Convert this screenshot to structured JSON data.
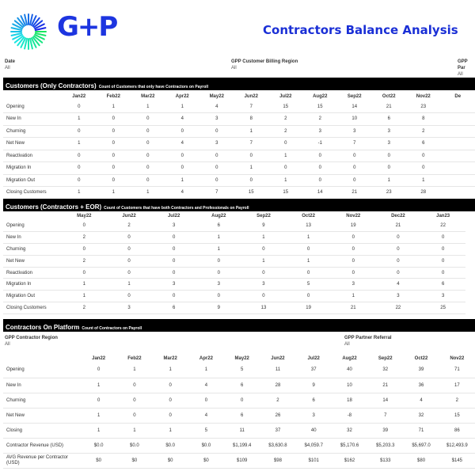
{
  "header": {
    "logo_text": "G+P",
    "title": "Contractors Balance Analysis"
  },
  "colors": {
    "brand": "#1d35e0",
    "band": "#000000",
    "title": "#1a2fd6"
  },
  "filters": [
    {
      "label": "Date",
      "value": "All"
    },
    {
      "label": "GPP Customer Billing Region",
      "value": "All"
    },
    {
      "label": "GPP Par",
      "value": "All"
    }
  ],
  "section1": {
    "title": "Customers (Only Contractors)",
    "subtitle": "Count of Customers that only have Contractors on Payroll",
    "columns": [
      "Jan22",
      "Feb22",
      "Mar22",
      "Apr22",
      "May22",
      "Jun22",
      "Jul22",
      "Aug22",
      "Sep22",
      "Oct22",
      "Nov22",
      "De"
    ],
    "rows": [
      {
        "label": "Opening",
        "values": [
          "0",
          "1",
          "1",
          "1",
          "4",
          "7",
          "15",
          "15",
          "14",
          "21",
          "23",
          ""
        ]
      },
      {
        "label": "New In",
        "values": [
          "1",
          "0",
          "0",
          "4",
          "3",
          "8",
          "2",
          "2",
          "10",
          "6",
          "8",
          ""
        ]
      },
      {
        "label": "Churning",
        "values": [
          "0",
          "0",
          "0",
          "0",
          "0",
          "1",
          "2",
          "3",
          "3",
          "3",
          "2",
          ""
        ]
      },
      {
        "label": "Net New",
        "values": [
          "1",
          "0",
          "0",
          "4",
          "3",
          "7",
          "0",
          "-1",
          "7",
          "3",
          "6",
          ""
        ]
      },
      {
        "label": "Reactivation",
        "values": [
          "0",
          "0",
          "0",
          "0",
          "0",
          "0",
          "1",
          "0",
          "0",
          "0",
          "0",
          ""
        ]
      },
      {
        "label": "Migration In",
        "values": [
          "0",
          "0",
          "0",
          "0",
          "0",
          "1",
          "0",
          "0",
          "0",
          "0",
          "0",
          ""
        ]
      },
      {
        "label": "Migration Out",
        "values": [
          "0",
          "0",
          "0",
          "1",
          "0",
          "0",
          "1",
          "0",
          "0",
          "1",
          "1",
          ""
        ]
      },
      {
        "label": "Closing Customers",
        "values": [
          "1",
          "1",
          "1",
          "4",
          "7",
          "15",
          "15",
          "14",
          "21",
          "23",
          "28",
          ""
        ]
      }
    ]
  },
  "section2": {
    "title": "Customers (Contractors + EOR)",
    "subtitle": "Count of Customers that have both Contractors and Professionals on Payroll",
    "columns": [
      "May22",
      "Jun22",
      "Jul22",
      "Aug22",
      "Sep22",
      "Oct22",
      "Nov22",
      "Dec22",
      "Jan23"
    ],
    "rows": [
      {
        "label": "Opening",
        "values": [
          "0",
          "2",
          "3",
          "6",
          "9",
          "13",
          "19",
          "21",
          "22"
        ]
      },
      {
        "label": "New In",
        "values": [
          "2",
          "0",
          "0",
          "1",
          "1",
          "1",
          "0",
          "0",
          "0"
        ]
      },
      {
        "label": "Churning",
        "values": [
          "0",
          "0",
          "0",
          "1",
          "0",
          "0",
          "0",
          "0",
          "0"
        ]
      },
      {
        "label": "Net New",
        "values": [
          "2",
          "0",
          "0",
          "0",
          "1",
          "1",
          "0",
          "0",
          "0"
        ]
      },
      {
        "label": "Reactivation",
        "values": [
          "0",
          "0",
          "0",
          "0",
          "0",
          "0",
          "0",
          "0",
          "0"
        ]
      },
      {
        "label": "Migration In",
        "values": [
          "1",
          "1",
          "3",
          "3",
          "3",
          "5",
          "3",
          "4",
          "6"
        ]
      },
      {
        "label": "Migration Out",
        "values": [
          "1",
          "0",
          "0",
          "0",
          "0",
          "0",
          "1",
          "3",
          "3"
        ]
      },
      {
        "label": "Closing Customers",
        "values": [
          "2",
          "3",
          "6",
          "9",
          "13",
          "19",
          "21",
          "22",
          "25"
        ]
      }
    ]
  },
  "section3": {
    "title": "Contractors On Platform",
    "subtitle": "Count of Contractors on Payroll",
    "filters": [
      {
        "label": "GPP Contractor Region",
        "value": "All"
      },
      {
        "label": "GPP Partner Referral",
        "value": "All"
      }
    ],
    "columns": [
      "Jan22",
      "Feb22",
      "Mar22",
      "Apr22",
      "May22",
      "Jun22",
      "Jul22",
      "Aug22",
      "Sep22",
      "Oct22",
      "Nov22"
    ],
    "rows": [
      {
        "label": "Opening",
        "values": [
          "0",
          "1",
          "1",
          "1",
          "5",
          "11",
          "37",
          "40",
          "32",
          "39",
          "71"
        ]
      },
      {
        "label": "New In",
        "values": [
          "1",
          "0",
          "0",
          "4",
          "6",
          "28",
          "9",
          "10",
          "21",
          "36",
          "17"
        ]
      },
      {
        "label": "Churning",
        "values": [
          "0",
          "0",
          "0",
          "0",
          "0",
          "2",
          "6",
          "18",
          "14",
          "4",
          "2"
        ]
      },
      {
        "label": "Net New",
        "values": [
          "1",
          "0",
          "0",
          "4",
          "6",
          "26",
          "3",
          "-8",
          "7",
          "32",
          "15"
        ]
      },
      {
        "label": "Closing",
        "values": [
          "1",
          "1",
          "1",
          "5",
          "11",
          "37",
          "40",
          "32",
          "39",
          "71",
          "86"
        ]
      },
      {
        "label": "Contractor Revenue (USD)",
        "values": [
          "$0.0",
          "$0.0",
          "$0.0",
          "$0.0",
          "$1,199.4",
          "$3,630.8",
          "$4,059.7",
          "$5,170.6",
          "$5,203.3",
          "$5,697.0",
          "$12,493.9"
        ]
      },
      {
        "label": "AVG Revenue per Contractor (USD)",
        "values": [
          "$0",
          "$0",
          "$0",
          "$0",
          "$109",
          "$98",
          "$101",
          "$162",
          "$133",
          "$80",
          "$145"
        ]
      }
    ]
  }
}
